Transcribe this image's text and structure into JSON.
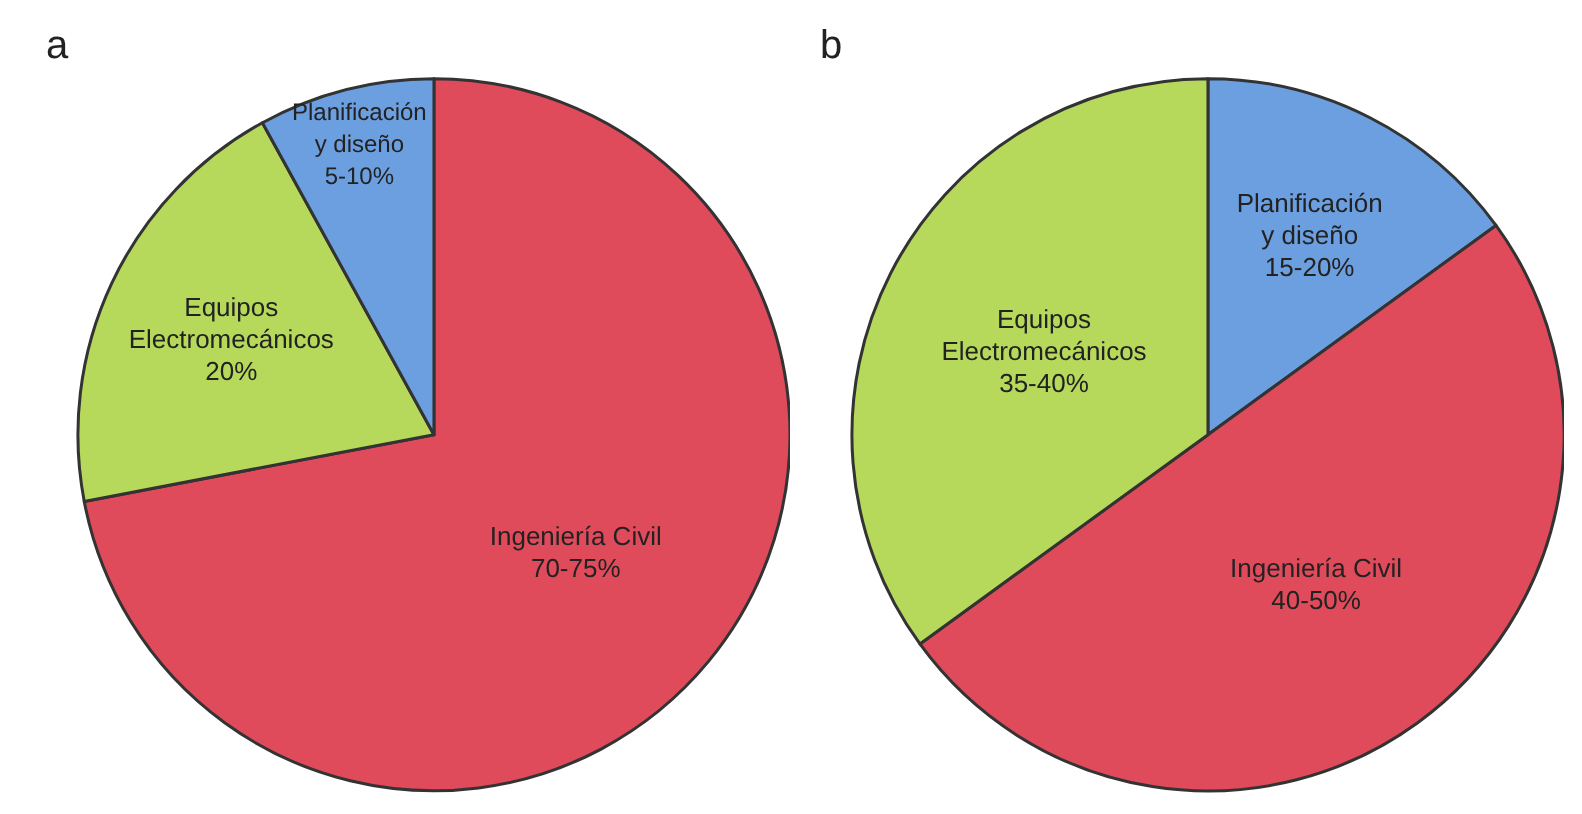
{
  "chart_data": [
    {
      "type": "pie",
      "title": "a",
      "categories": [
        "Ingeniería Civil\n70-75%",
        "Equipos\nElectromecánicos\n20%",
        "Planificación\ny diseño\n5-10%"
      ],
      "values": [
        72,
        20,
        8
      ],
      "colors": [
        "#e04b5b",
        "#b6d95b",
        "#6c9fe0"
      ]
    },
    {
      "type": "pie",
      "title": "b",
      "categories": [
        "Planificación\ny diseño\n15-20%",
        "Ingeniería Civil\n40-50%",
        "Equipos\nElectromecánicos\n35-40%"
      ],
      "values": [
        15,
        50,
        35
      ],
      "colors": [
        "#6c9fe0",
        "#e04b5b",
        "#b6d95b"
      ]
    }
  ]
}
